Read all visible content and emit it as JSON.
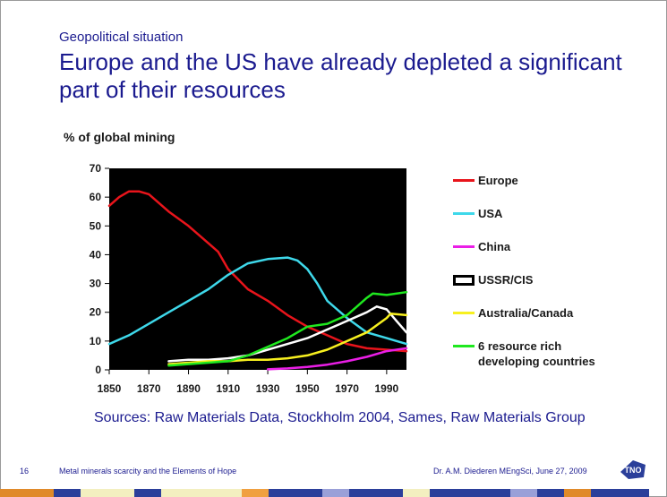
{
  "slide": {
    "subtitle": "Geopolitical situation",
    "title": "Europe and the US have already depleted a significant part of their resources",
    "sources": "Sources: Raw Materials Data, Stockholm 2004, Sames, Raw Materials Group",
    "page_number": "16",
    "footer_center": "Metal minerals scarcity and the Elements of Hope",
    "footer_right": "Dr. A.M. Diederen MEngSci, June 27, 2009",
    "logo_text": "TNO"
  },
  "chart_data": {
    "type": "line",
    "title": "",
    "ylabel": "% of global mining",
    "xlabel": "",
    "xlim": [
      1850,
      2000
    ],
    "ylim": [
      0,
      70
    ],
    "xticks": [
      1850,
      1870,
      1890,
      1910,
      1930,
      1950,
      1970,
      1990
    ],
    "yticks": [
      0,
      10,
      20,
      30,
      40,
      50,
      60,
      70
    ],
    "background": "#000000",
    "legend_position": "right",
    "series": [
      {
        "name": "Europe",
        "color": "#e8141b",
        "points": [
          [
            1850,
            57
          ],
          [
            1855,
            60
          ],
          [
            1860,
            62
          ],
          [
            1865,
            62
          ],
          [
            1870,
            61
          ],
          [
            1880,
            55
          ],
          [
            1890,
            50
          ],
          [
            1900,
            44
          ],
          [
            1905,
            41
          ],
          [
            1910,
            35
          ],
          [
            1920,
            28
          ],
          [
            1930,
            24
          ],
          [
            1940,
            19
          ],
          [
            1950,
            15
          ],
          [
            1960,
            12
          ],
          [
            1970,
            9
          ],
          [
            1980,
            7.5
          ],
          [
            1990,
            7
          ],
          [
            2000,
            6.5
          ]
        ]
      },
      {
        "name": "USA",
        "color": "#3ed8ea",
        "points": [
          [
            1850,
            9
          ],
          [
            1860,
            12
          ],
          [
            1870,
            16
          ],
          [
            1880,
            20
          ],
          [
            1890,
            24
          ],
          [
            1900,
            28
          ],
          [
            1910,
            33
          ],
          [
            1920,
            37
          ],
          [
            1930,
            38.5
          ],
          [
            1940,
            39
          ],
          [
            1945,
            38
          ],
          [
            1950,
            35
          ],
          [
            1955,
            30
          ],
          [
            1960,
            24
          ],
          [
            1970,
            18
          ],
          [
            1980,
            13
          ],
          [
            1990,
            11
          ],
          [
            2000,
            9
          ]
        ]
      },
      {
        "name": "China",
        "color": "#ea1ee6",
        "points": [
          [
            1930,
            0.2
          ],
          [
            1940,
            0.5
          ],
          [
            1950,
            1
          ],
          [
            1960,
            1.8
          ],
          [
            1970,
            3
          ],
          [
            1980,
            4.5
          ],
          [
            1990,
            6.5
          ],
          [
            2000,
            7.5
          ]
        ]
      },
      {
        "name": "USSR/CIS",
        "color": "#ffffff",
        "points": [
          [
            1880,
            3
          ],
          [
            1890,
            3.5
          ],
          [
            1900,
            3.5
          ],
          [
            1910,
            4
          ],
          [
            1920,
            5
          ],
          [
            1930,
            7
          ],
          [
            1940,
            9
          ],
          [
            1950,
            11
          ],
          [
            1960,
            14
          ],
          [
            1970,
            17
          ],
          [
            1980,
            20
          ],
          [
            1985,
            22
          ],
          [
            1990,
            21
          ],
          [
            1995,
            17
          ],
          [
            2000,
            13
          ]
        ]
      },
      {
        "name": "Australia/Canada",
        "color": "#f7f01f",
        "points": [
          [
            1880,
            2
          ],
          [
            1890,
            2.5
          ],
          [
            1900,
            3
          ],
          [
            1910,
            3
          ],
          [
            1920,
            3.5
          ],
          [
            1930,
            3.5
          ],
          [
            1940,
            4
          ],
          [
            1950,
            5
          ],
          [
            1960,
            7
          ],
          [
            1970,
            10
          ],
          [
            1980,
            13
          ],
          [
            1990,
            18
          ],
          [
            1992,
            19.5
          ],
          [
            2000,
            19
          ]
        ]
      },
      {
        "name": "6 resource rich developing countries",
        "color": "#1fe81f",
        "points": [
          [
            1880,
            1.5
          ],
          [
            1890,
            2
          ],
          [
            1900,
            2.5
          ],
          [
            1910,
            3
          ],
          [
            1920,
            5
          ],
          [
            1930,
            8
          ],
          [
            1940,
            11
          ],
          [
            1950,
            15
          ],
          [
            1960,
            16
          ],
          [
            1970,
            19
          ],
          [
            1975,
            22
          ],
          [
            1980,
            25
          ],
          [
            1983,
            26.5
          ],
          [
            1990,
            26
          ],
          [
            2000,
            27
          ]
        ]
      }
    ]
  }
}
